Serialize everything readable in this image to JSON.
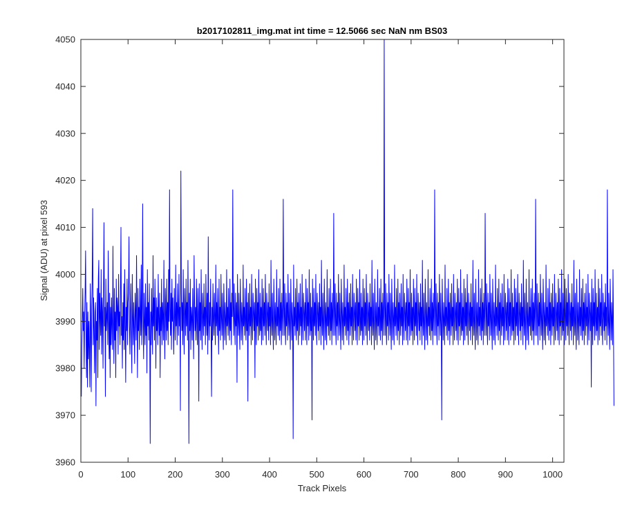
{
  "chart_data": {
    "type": "line",
    "title": "b2017102811_img.mat int time = 12.5066 sec  NaN nm BS03",
    "xlabel": "Track Pixels",
    "ylabel": "Signal (ADU) at pixel 593",
    "xlim": [
      0,
      1024
    ],
    "ylim": [
      3960,
      4050
    ],
    "x_ticks": [
      0,
      100,
      200,
      300,
      400,
      500,
      600,
      700,
      800,
      900,
      1000
    ],
    "y_ticks": [
      3960,
      3970,
      3980,
      3990,
      4000,
      4010,
      4020,
      4030,
      4040,
      4050
    ],
    "grid": false,
    "series": [
      {
        "color": "#0000ff",
        "x_start": 1,
        "x_step": 1,
        "values": [
          3974,
          3985,
          3990,
          3997,
          3988,
          3992,
          3980,
          3991,
          3996,
          4005,
          3987,
          3978,
          3994,
          3976,
          3992,
          3982,
          3990,
          3984,
          3976,
          3998,
          3989,
          3975,
          3993,
          3999,
          4014,
          3985,
          3995,
          3988,
          3979,
          3992,
          3994,
          3972,
          3990,
          3986,
          3997,
          3978,
          3999,
          4003,
          3984,
          3996,
          3991,
          3987,
          4001,
          3983,
          3995,
          3992,
          3980,
          3996,
          4011,
          3989,
          3993,
          3974,
          3999,
          3988,
          3991,
          3994,
          3985,
          4005,
          3990,
          3982,
          3996,
          3978,
          3993,
          3985,
          3995,
          3989,
          3984,
          4006,
          3990,
          3981,
          3997,
          3986,
          3992,
          3978,
          3999,
          3988,
          3995,
          3993,
          3983,
          4000,
          3989,
          3992,
          3985,
          3996,
          4010,
          3987,
          3991,
          3980,
          3994,
          3986,
          3998,
          3984,
          4001,
          3990,
          3977,
          3993,
          3988,
          3999,
          3985,
          3994,
          3996,
          4008,
          3989,
          3983,
          3992,
          3998,
          3987,
          3979,
          4000,
          3991,
          3985,
          3994,
          3989,
          3981,
          3996,
          3992,
          3986,
          4004,
          3990,
          3978,
          3997,
          3988,
          3993,
          3984,
          3999,
          3991,
          3987,
          4002,
          3985,
          3993,
          4015,
          3989,
          3982,
          3996,
          3990,
          3985,
          3998,
          3987,
          3993,
          3979,
          4001,
          3989,
          3994,
          3986,
          3998,
          3988,
          3964,
          3992,
          3985,
          3997,
          3990,
          3983,
          4004,
          3989,
          3995,
          3986,
          3999,
          3992,
          3980,
          3995,
          3988,
          3993,
          3985,
          4000,
          3990,
          3987,
          3996,
          3978,
          3993,
          3988,
          3999,
          3985,
          3994,
          3991,
          3986,
          4003,
          3989,
          3982,
          3997,
          3992,
          3986,
          3999,
          3988,
          3994,
          3985,
          4001,
          3990,
          4018,
          3993,
          3987,
          3996,
          3984,
          3999,
          3990,
          3995,
          3988,
          3983,
          3997,
          3991,
          3986,
          4002,
          3989,
          3994,
          3985,
          3998,
          3992,
          3987,
          4000,
          3989,
          3993,
          3971,
          4022,
          3996,
          3988,
          3994,
          3985,
          4001,
          3990,
          3983,
          3997,
          3992,
          3987,
          3999,
          3989,
          3994,
          3986,
          4003,
          3990,
          3964,
          3996,
          3988,
          3999,
          3984,
          3993,
          3991,
          3986,
          3997,
          3989,
          3982,
          4004,
          3994,
          3988,
          3993,
          3986,
          3999,
          3990,
          3985,
          3997,
          3992,
          3973,
          3998,
          3988,
          3994,
          3986,
          4001,
          3990,
          3984,
          3996,
          3991,
          3987,
          3998,
          3989,
          3993,
          3985,
          4000,
          3991,
          3987,
          3996,
          3983,
          4008,
          3990,
          3986,
          3994,
          3989,
          3999,
          3988,
          3974,
          3993,
          3986,
          3998,
          3990,
          3987,
          3996,
          3991,
          3985,
          4002,
          3989,
          3994,
          3987,
          3997,
          3990,
          3983,
          3999,
          3988,
          3993,
          3986,
          4000,
          3991,
          3987,
          3996,
          3989,
          3984,
          3998,
          3992,
          3986,
          3994,
          3990,
          3985,
          4001,
          3989,
          3993,
          3987,
          3997,
          3990,
          3986,
          3999,
          3988,
          3994,
          3985,
          3996,
          3991,
          4018,
          3993,
          3987,
          3998,
          3990,
          3985,
          3996,
          3989,
          3994,
          3977,
          4000,
          3991,
          3987,
          3996,
          3989,
          3984,
          3999,
          3992,
          3986,
          3994,
          3990,
          3985,
          4002,
          3989,
          3993,
          3987,
          3997,
          3990,
          3986,
          3999,
          3988,
          3994,
          3973,
          3996,
          3991,
          3987,
          3998,
          3989,
          3993,
          3985,
          4000,
          3990,
          3986,
          3996,
          3992,
          3988,
          3994,
          3978,
          3999,
          3991,
          3985,
          3997,
          3989,
          3994,
          3986,
          4001,
          3990,
          3987,
          3996,
          3988,
          3993,
          3985,
          3999,
          3991,
          3986,
          3997,
          3989,
          3994,
          3987,
          4000,
          3990,
          3985,
          3996,
          3992,
          3988,
          3994,
          3986,
          3998,
          3989,
          3993,
          3985,
          4003,
          3990,
          3987,
          3996,
          3989,
          3984,
          3999,
          3992,
          3986,
          3994,
          3990,
          3985,
          4001,
          3989,
          3993,
          3987,
          3997,
          3990,
          3986,
          3999,
          3988,
          3994,
          3985,
          3996,
          3991,
          3987,
          4016,
          3993,
          3987,
          3998,
          3990,
          3985,
          3996,
          3989,
          3994,
          3986,
          4000,
          3991,
          3987,
          3996,
          3989,
          3984,
          3999,
          3992,
          3986,
          3994,
          3990,
          3965,
          4002,
          3989,
          3993,
          3987,
          3997,
          3990,
          3986,
          3999,
          3988,
          3994,
          3985,
          3996,
          3991,
          3987,
          3998,
          3989,
          3993,
          3985,
          4000,
          3990,
          3986,
          3996,
          3992,
          3988,
          3994,
          3986,
          3999,
          3991,
          3985,
          3997,
          3989,
          3994,
          3986,
          4001,
          3990,
          3987,
          3996,
          3988,
          3993,
          3969,
          3999,
          3991,
          3986,
          3997,
          3989,
          3994,
          3987,
          4000,
          3990,
          3985,
          3996,
          3992,
          3988,
          3994,
          3986,
          3998,
          3989,
          3993,
          3985,
          4003,
          3990,
          3987,
          3996,
          3989,
          3984,
          3999,
          3992,
          3986,
          3994,
          3990,
          3985,
          4001,
          3989,
          3993,
          3987,
          3997,
          3990,
          3986,
          3999,
          3988,
          3994,
          3985,
          3996,
          3991,
          3987,
          4013,
          3993,
          3987,
          3998,
          3990,
          3985,
          3996,
          3989,
          3994,
          3986,
          4000,
          3991,
          3987,
          3996,
          3989,
          3984,
          3999,
          3992,
          3986,
          3994,
          3990,
          3985,
          4002,
          3989,
          3993,
          3987,
          3997,
          3990,
          3986,
          3999,
          3988,
          3994,
          3985,
          3996,
          3991,
          3987,
          3998,
          3989,
          3993,
          3985,
          4000,
          3990,
          3986,
          3996,
          3992,
          3988,
          3994,
          3986,
          3999,
          3991,
          3985,
          3997,
          3989,
          3994,
          3986,
          4001,
          3990,
          3987,
          3996,
          3988,
          3993,
          3985,
          3999,
          3991,
          3986,
          3997,
          3989,
          3994,
          3987,
          4000,
          3990,
          3985,
          3996,
          3992,
          3988,
          3994,
          3986,
          3998,
          3989,
          3993,
          3985,
          4003,
          3990,
          3987,
          3996,
          3989,
          3984,
          3999,
          3992,
          3986,
          3994,
          3990,
          3985,
          4001,
          3989,
          3993,
          3987,
          3997,
          3990,
          3986,
          3999,
          3988,
          3994,
          3985,
          3996,
          3991,
          3987,
          4050,
          3993,
          3987,
          3998,
          3990,
          3985,
          3996,
          3989,
          3994,
          3986,
          4000,
          3991,
          3987,
          3996,
          3989,
          3984,
          3999,
          3992,
          3986,
          3994,
          3990,
          3985,
          4002,
          3989,
          3993,
          3987,
          3997,
          3990,
          3986,
          3999,
          3988,
          3994,
          3985,
          3996,
          3991,
          3987,
          3998,
          3989,
          3993,
          3985,
          4000,
          3990,
          3986,
          3996,
          3992,
          3988,
          3994,
          3986,
          3999,
          3991,
          3985,
          3997,
          3989,
          3994,
          3986,
          4001,
          3990,
          3987,
          3996,
          3988,
          3993,
          3985,
          3999,
          3991,
          3986,
          3997,
          3989,
          3994,
          3987,
          4000,
          3990,
          3985,
          3996,
          3992,
          3988,
          3994,
          3986,
          3998,
          3989,
          3993,
          3985,
          4003,
          3990,
          3987,
          3996,
          3989,
          3984,
          3999,
          3992,
          3986,
          3994,
          3990,
          3985,
          4001,
          3989,
          3993,
          3987,
          3997,
          3990,
          3986,
          3999,
          3988,
          3994,
          3985,
          3996,
          3991,
          3987,
          4018,
          3993,
          3987,
          3998,
          3990,
          3985,
          3996,
          3989,
          3994,
          3986,
          4000,
          3991,
          3987,
          3996,
          3989,
          3969,
          3999,
          3992,
          3986,
          3994,
          3990,
          3985,
          4002,
          3989,
          3993,
          3987,
          3997,
          3990,
          3986,
          3999,
          3988,
          3994,
          3985,
          3996,
          3991,
          3987,
          3998,
          3989,
          3993,
          3985,
          4000,
          3990,
          3986,
          3996,
          3992,
          3988,
          3994,
          3986,
          3999,
          3991,
          3985,
          3997,
          3989,
          3994,
          3986,
          4001,
          3990,
          3987,
          3996,
          3988,
          3993,
          3985,
          3999,
          3991,
          3986,
          3997,
          3989,
          3994,
          3987,
          4000,
          3990,
          3985,
          3996,
          3992,
          3988,
          3994,
          3986,
          3998,
          3989,
          3993,
          3985,
          4003,
          3990,
          3987,
          3996,
          3989,
          3984,
          3999,
          3992,
          3986,
          3994,
          3990,
          3985,
          4001,
          3989,
          3993,
          3987,
          3997,
          3990,
          3986,
          3999,
          3988,
          3994,
          3985,
          3996,
          3991,
          3987,
          4013,
          3993,
          3987,
          3998,
          3990,
          3985,
          3996,
          3989,
          3994,
          3986,
          4000,
          3991,
          3987,
          3996,
          3989,
          3984,
          3999,
          3992,
          3986,
          3994,
          3990,
          3985,
          4002,
          3989,
          3993,
          3987,
          3997,
          3990,
          3986,
          3999,
          3988,
          3994,
          3985,
          3996,
          3991,
          3987,
          3998,
          3989,
          3993,
          3985,
          4000,
          3990,
          3986,
          3996,
          3992,
          3988,
          3994,
          3986,
          3999,
          3991,
          3985,
          3997,
          3989,
          3994,
          3986,
          4001,
          3990,
          3987,
          3996,
          3988,
          3993,
          3985,
          3999,
          3991,
          3986,
          3997,
          3989,
          3994,
          3987,
          4000,
          3990,
          3985,
          3996,
          3992,
          3988,
          3994,
          3986,
          3998,
          3989,
          3993,
          3985,
          4003,
          3990,
          3987,
          3996,
          3989,
          3984,
          3999,
          3992,
          3986,
          3994,
          3990,
          3985,
          4001,
          3989,
          3993,
          3987,
          3997,
          3990,
          3986,
          3999,
          3988,
          3994,
          3985,
          3996,
          3991,
          3987,
          4016,
          3993,
          3987,
          3998,
          3990,
          3985,
          3996,
          3989,
          3994,
          3986,
          4000,
          3991,
          3987,
          3996,
          3989,
          3984,
          3999,
          3992,
          3986,
          3994,
          3990,
          3985,
          4002,
          3989,
          3993,
          3987,
          3997,
          3990,
          3986,
          3999,
          3988,
          3994,
          3985,
          3996,
          3991,
          3987,
          3998,
          3989,
          3993,
          3985,
          4000,
          3990,
          3986,
          3996,
          3992,
          3988,
          3994,
          3986,
          3999,
          3991,
          3985,
          3997,
          3989,
          3994,
          3986,
          4001,
          3990,
          3987,
          3996,
          3988,
          3993,
          3985,
          3999,
          3991,
          3986,
          3997,
          3989,
          3994,
          3987,
          4000,
          3990,
          3985,
          3996,
          3992,
          3988,
          3994,
          3986,
          3998,
          3989,
          3993,
          3985,
          4003,
          3990,
          3987,
          3996,
          3989,
          3984,
          3999,
          3992,
          3986,
          3994,
          3990,
          3985,
          4001,
          3989,
          3993,
          3987,
          3997,
          3990,
          3986,
          3999,
          3988,
          3994,
          3985,
          3996,
          3991,
          3987,
          3998,
          3989,
          3993,
          3985,
          4000,
          3990,
          3986,
          3996,
          3992,
          3988,
          3994,
          3976,
          3999,
          3991,
          3985,
          3997,
          3989,
          3994,
          3986,
          4001,
          3990,
          3987,
          3996,
          3988,
          3993,
          3985,
          3999,
          3991,
          3986,
          3997,
          3989,
          3994,
          3987,
          4000,
          3990,
          3985,
          3996,
          3992,
          3988,
          3994,
          3986,
          3998,
          3989,
          3993,
          3985,
          4018,
          3990,
          3987,
          3996,
          3989,
          3984,
          3999,
          3992,
          3986,
          3994,
          3990,
          3985,
          4001,
          3989,
          3972
        ]
      }
    ]
  }
}
